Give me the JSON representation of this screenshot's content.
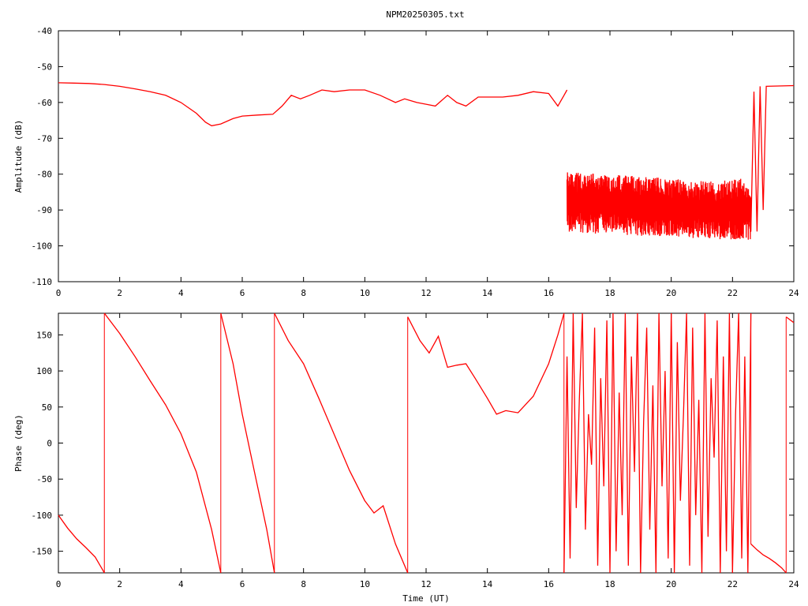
{
  "title": "NPM20250305.txt",
  "line_color": "#ff0000",
  "chart_data": [
    {
      "type": "line",
      "name": "amplitude-panel",
      "ylabel": "Amplitude (dB)",
      "xlabel": "",
      "xlim": [
        0,
        24
      ],
      "ylim": [
        -110,
        -40
      ],
      "xticks": [
        0,
        2,
        4,
        6,
        8,
        10,
        12,
        14,
        16,
        18,
        20,
        22,
        24
      ],
      "yticks": [
        -40,
        -50,
        -60,
        -70,
        -80,
        -90,
        -100,
        -110
      ],
      "x": [
        0,
        0.5,
        1,
        1.5,
        2,
        2.5,
        3,
        3.5,
        4,
        4.5,
        4.8,
        5.0,
        5.3,
        5.7,
        6,
        6.5,
        7,
        7.3,
        7.6,
        7.9,
        8.2,
        8.6,
        9,
        9.5,
        10,
        10.5,
        11,
        11.3,
        11.7,
        12,
        12.3,
        12.5,
        12.7,
        13,
        13.3,
        13.7,
        14,
        14.5,
        15,
        15.5,
        16,
        16.3,
        16.5,
        16.6
      ],
      "values": [
        -54.5,
        -54.6,
        -54.7,
        -55,
        -55.5,
        -56.2,
        -57,
        -58,
        -60,
        -63,
        -65.5,
        -66.5,
        -66,
        -64.5,
        -63.8,
        -63.5,
        -63.3,
        -61,
        -58,
        -59,
        -58,
        -56.5,
        -57,
        -56.5,
        -56.5,
        -58,
        -60,
        -59,
        -60,
        -60.5,
        -61,
        -59.5,
        -58,
        -60,
        -61,
        -58.5,
        -58.5,
        -58.5,
        -58,
        -57,
        -57.5,
        -61,
        -58,
        -56.5
      ],
      "noise_segment": {
        "x_start": 16.6,
        "x_end": 22.6,
        "upper": [
          -79,
          -80,
          -81,
          -82,
          -81
        ],
        "lower": [
          -96,
          -97,
          -97.5,
          -98,
          -98.5
        ]
      },
      "recovery_segment": {
        "x": [
          22.6,
          22.7,
          22.8,
          22.9,
          23.0,
          23.1,
          24
        ],
        "values": [
          -96,
          -57,
          -96,
          -55.5,
          -90,
          -55.5,
          -55.3
        ]
      }
    },
    {
      "type": "line",
      "name": "phase-panel",
      "ylabel": "Phase (deg)",
      "xlabel": "Time (UT)",
      "xlim": [
        0,
        24
      ],
      "ylim": [
        -180,
        180
      ],
      "xticks": [
        0,
        2,
        4,
        6,
        8,
        10,
        12,
        14,
        16,
        18,
        20,
        22,
        24
      ],
      "yticks": [
        150,
        100,
        50,
        0,
        -50,
        -100,
        -150
      ],
      "segments": [
        {
          "x": [
            0,
            0.3,
            0.6,
            0.9,
            1.2,
            1.5
          ],
          "values": [
            -100,
            -118,
            -133,
            -145,
            -158,
            -180
          ]
        },
        {
          "x": [
            1.5,
            2,
            2.5,
            3,
            3.5,
            4,
            4.5,
            5.0,
            5.3
          ],
          "values": [
            180,
            152,
            120,
            86,
            53,
            13,
            -40,
            -120,
            -180
          ]
        },
        {
          "x": [
            5.3,
            5.7,
            6,
            6.4,
            6.8,
            7.05
          ],
          "values": [
            180,
            110,
            40,
            -40,
            -120,
            -180
          ]
        },
        {
          "x": [
            7.05,
            7.5,
            8,
            8.5,
            9,
            9.5,
            10,
            10.3,
            10.6,
            11,
            11.4
          ],
          "values": [
            180,
            142,
            110,
            62,
            12,
            -38,
            -80,
            -97,
            -87,
            -140,
            -180
          ]
        },
        {
          "x": [
            11.4,
            11.8,
            12.1,
            12.4,
            12.7,
            13,
            13.3,
            13.6,
            14,
            14.3,
            14.6,
            15,
            15.5,
            16,
            16.3,
            16.5
          ],
          "values": [
            175,
            142,
            125,
            148,
            105,
            108,
            110,
            90,
            62,
            40,
            45,
            42,
            65,
            110,
            150,
            180
          ]
        },
        {
          "x": [
            16.5,
            16.6,
            16.7,
            16.8,
            16.9,
            17.0,
            17.1,
            17.2,
            17.3,
            17.4,
            17.5,
            17.6,
            17.7,
            17.8,
            17.9,
            18.0,
            18.1,
            18.2,
            18.3,
            18.4,
            18.5,
            18.6,
            18.7,
            18.8,
            18.9,
            19.0,
            19.1,
            19.2,
            19.3,
            19.4,
            19.5,
            19.6,
            19.7,
            19.8,
            19.9,
            20.0,
            20.1,
            20.2,
            20.3,
            20.4,
            20.5,
            20.6,
            20.7,
            20.8,
            20.9,
            21.0,
            21.1,
            21.2,
            21.3,
            21.4,
            21.5,
            21.6,
            21.7,
            21.8,
            21.9,
            22.0,
            22.1,
            22.2,
            22.3,
            22.4,
            22.5,
            22.6
          ],
          "values": [
            -180,
            120,
            -160,
            180,
            -90,
            60,
            180,
            -120,
            40,
            -30,
            160,
            -170,
            90,
            -60,
            170,
            -180,
            180,
            -150,
            70,
            -100,
            180,
            -170,
            120,
            -40,
            180,
            -180,
            30,
            160,
            -120,
            80,
            -180,
            180,
            -60,
            100,
            -160,
            180,
            -180,
            140,
            -80,
            40,
            180,
            -170,
            160,
            -100,
            60,
            -180,
            180,
            -130,
            90,
            -20,
            170,
            -180,
            120,
            -150,
            180,
            -180,
            40,
            180,
            -160,
            120,
            -180,
            180
          ]
        },
        {
          "x": [
            22.6,
            22.8,
            23.0,
            23.2,
            23.4,
            23.6,
            23.75
          ],
          "values": [
            -140,
            -148,
            -155,
            -160,
            -166,
            -173,
            -180
          ]
        },
        {
          "x": [
            23.75,
            24
          ],
          "values": [
            175,
            167
          ]
        }
      ]
    }
  ]
}
